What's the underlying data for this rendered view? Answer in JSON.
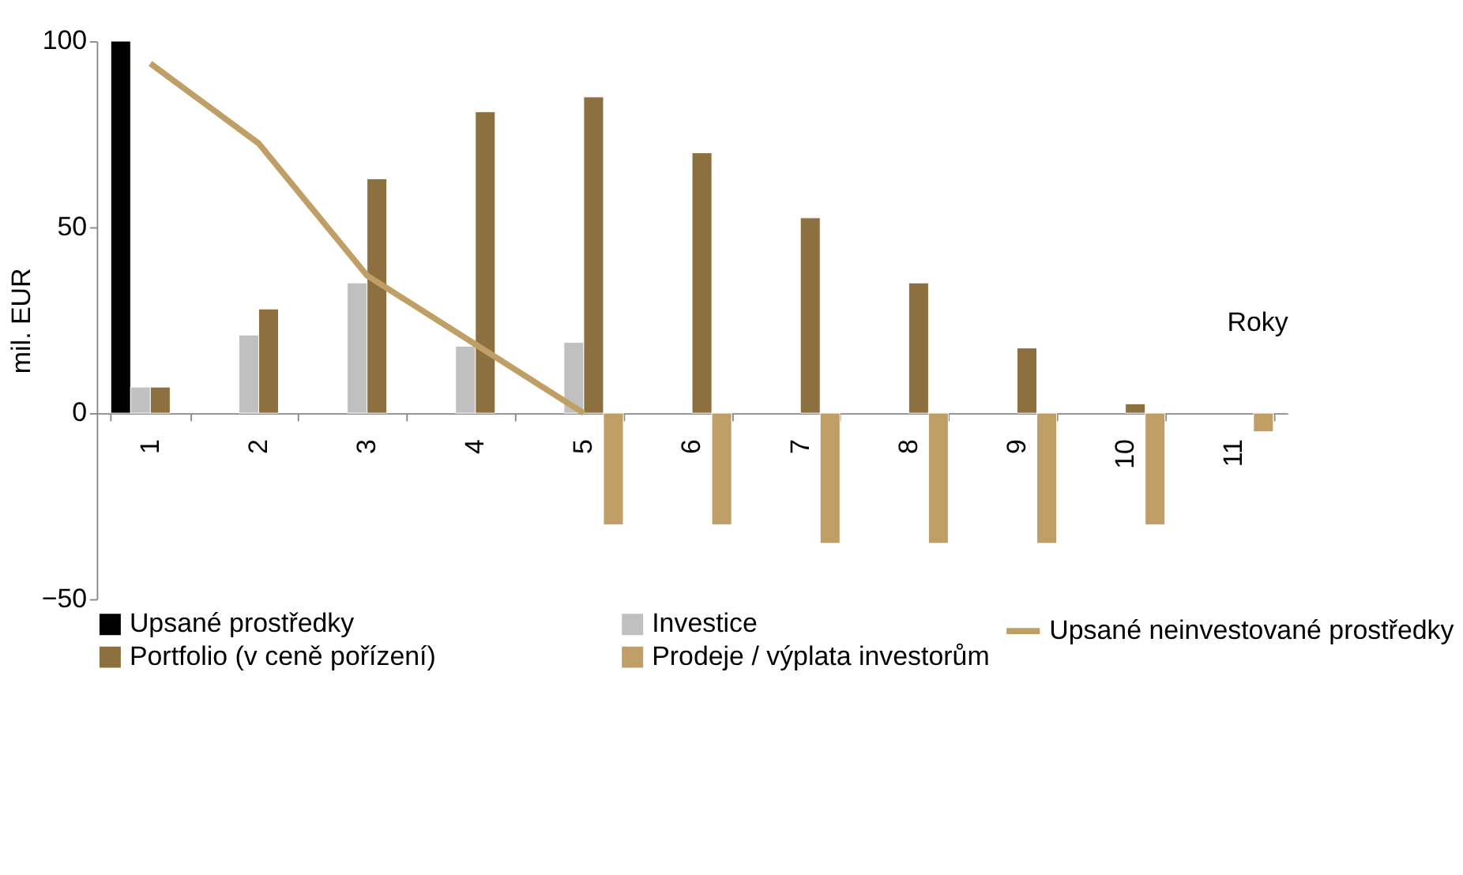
{
  "chart_data": {
    "type": "bar",
    "xlabel": "Roky",
    "ylabel": "mil. EUR",
    "categories": [
      "1",
      "2",
      "3",
      "4",
      "5",
      "6",
      "7",
      "8",
      "9",
      "10",
      "11"
    ],
    "series": [
      {
        "name": "Upsané prostředky",
        "color": "#000000",
        "values": [
          100,
          null,
          null,
          null,
          null,
          null,
          null,
          null,
          null,
          null,
          null
        ]
      },
      {
        "name": "Investice",
        "color": "#c0c0c0",
        "values": [
          7,
          21,
          35,
          18,
          19,
          null,
          null,
          null,
          null,
          null,
          null
        ]
      },
      {
        "name": "Portfolio (v ceně pořízení)",
        "color": "#8c703f",
        "values": [
          7,
          28,
          63,
          81,
          85,
          70,
          52.5,
          35,
          17.5,
          2.5,
          null
        ]
      },
      {
        "name": "Prodeje / výplata investorům",
        "color": "#bf9f66",
        "values": [
          null,
          null,
          null,
          null,
          -30,
          -30,
          -35,
          -35,
          -35,
          -30,
          -5
        ]
      },
      {
        "name": "Upsané neinvestované prostředky",
        "type": "line",
        "color": "#bf9f66",
        "values": [
          94,
          72.5,
          37,
          18.5,
          0,
          null,
          null,
          null,
          null,
          null,
          null
        ]
      }
    ],
    "ylim": [
      -50,
      100
    ],
    "yticks": [
      -50,
      0,
      50,
      100
    ],
    "grid": false,
    "legend": "bottom"
  }
}
